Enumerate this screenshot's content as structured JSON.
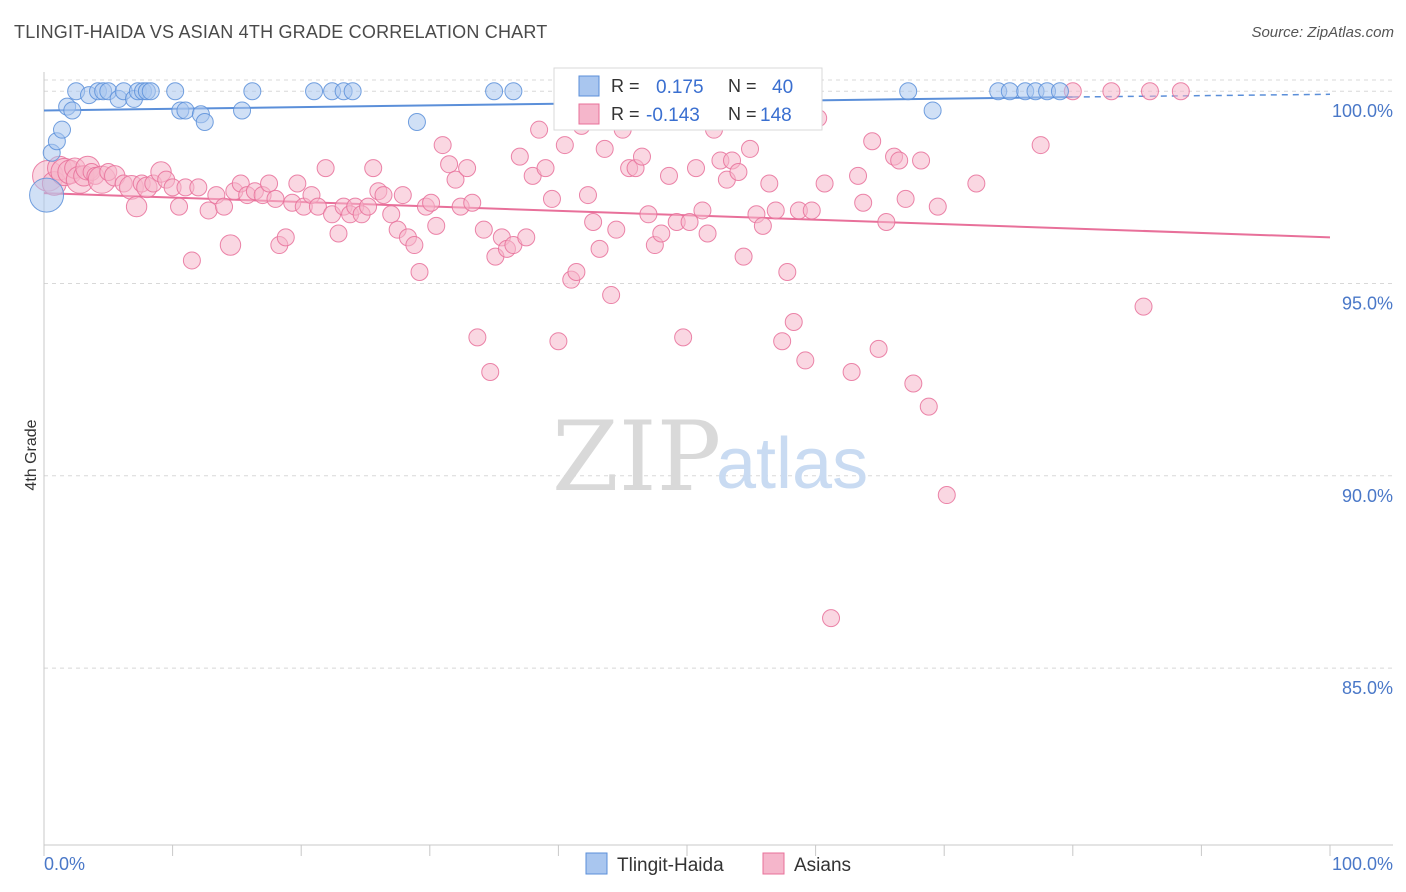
{
  "title": "TLINGIT-HAIDA VS ASIAN 4TH GRADE CORRELATION CHART",
  "source": "Source: ZipAtlas.com",
  "watermark": {
    "zip": "ZIP",
    "atlas": "atlas"
  },
  "colors": {
    "blue": "#5b8fd9",
    "blue_fill": "#a9c6ef",
    "pink": "#e8709a",
    "pink_fill": "#f5b6cb",
    "grid": "#d8d8d8",
    "axis_text": "#4a78c8"
  },
  "chart_data": {
    "type": "scatter",
    "title": "TLINGIT-HAIDA VS ASIAN 4TH GRADE CORRELATION CHART",
    "xlabel": "",
    "ylabel": "4th Grade",
    "xlim": [
      0,
      100
    ],
    "ylim": [
      80.4,
      100.5
    ],
    "x_tick_labels": [
      "0.0%",
      "100.0%"
    ],
    "y_ticks": [
      100,
      95,
      90,
      85
    ],
    "y_tick_labels": [
      "100.0%",
      "95.0%",
      "90.0%",
      "85.0%"
    ],
    "legend": {
      "position": "bottom",
      "entries": [
        "Tlingit-Haida",
        "Asians"
      ]
    },
    "stats": [
      {
        "label_r": "R =",
        "r": "0.175",
        "label_n": "N =",
        "n": "40"
      },
      {
        "label_r": "R =",
        "r": "-0.143",
        "label_n": "N =",
        "n": "148"
      }
    ],
    "series": [
      {
        "name": "Tlingit-Haida",
        "color": "#5b8fd9",
        "trend": {
          "x": [
            0,
            80
          ],
          "y": [
            99.5,
            99.85
          ],
          "dashed_to": [
            100,
            99.92
          ]
        },
        "points": [
          [
            0.2,
            97.3,
            2.0
          ],
          [
            0.6,
            98.4,
            1
          ],
          [
            1.0,
            98.7,
            1
          ],
          [
            1.4,
            99.0,
            1
          ],
          [
            1.8,
            99.6,
            1
          ],
          [
            2.2,
            99.5,
            1
          ],
          [
            2.5,
            100,
            1
          ],
          [
            3.5,
            99.9,
            1
          ],
          [
            4.2,
            100,
            1
          ],
          [
            4.6,
            100,
            1
          ],
          [
            5.0,
            100,
            1
          ],
          [
            5.8,
            99.8,
            1
          ],
          [
            6.2,
            100,
            1
          ],
          [
            7.0,
            99.8,
            1
          ],
          [
            7.3,
            100,
            1
          ],
          [
            7.7,
            100,
            1
          ],
          [
            8.0,
            100,
            1
          ],
          [
            8.3,
            100,
            1
          ],
          [
            10.2,
            100,
            1
          ],
          [
            10.6,
            99.5,
            1
          ],
          [
            11.0,
            99.5,
            1
          ],
          [
            12.2,
            99.4,
            1
          ],
          [
            12.5,
            99.2,
            1
          ],
          [
            15.4,
            99.5,
            1
          ],
          [
            16.2,
            100,
            1
          ],
          [
            21.0,
            100,
            1
          ],
          [
            22.4,
            100,
            1
          ],
          [
            23.3,
            100,
            1
          ],
          [
            24.0,
            100,
            1
          ],
          [
            29.0,
            99.2,
            1
          ],
          [
            35.0,
            100,
            1
          ],
          [
            36.5,
            100,
            1
          ],
          [
            67.2,
            100,
            1
          ],
          [
            69.1,
            99.5,
            1
          ],
          [
            74.2,
            100,
            1
          ],
          [
            75.1,
            100,
            1
          ],
          [
            76.3,
            100,
            1
          ],
          [
            77.1,
            100,
            1
          ],
          [
            78.0,
            100,
            1
          ],
          [
            79.0,
            100,
            1
          ]
        ]
      },
      {
        "name": "Asians",
        "color": "#e8709a",
        "trend": {
          "x": [
            0,
            100
          ],
          "y": [
            97.35,
            96.2
          ]
        },
        "points": [
          [
            0.3,
            97.8,
            1.8
          ],
          [
            0.8,
            97.6,
            1.4
          ],
          [
            1.2,
            98.0,
            1.4
          ],
          [
            1.6,
            97.9,
            1.6
          ],
          [
            2.0,
            97.9,
            1.4
          ],
          [
            2.4,
            98.0,
            1.2
          ],
          [
            2.8,
            97.7,
            1.6
          ],
          [
            3.1,
            97.8,
            1.2
          ],
          [
            3.4,
            98.0,
            1.4
          ],
          [
            3.7,
            97.9,
            1
          ],
          [
            4.0,
            97.8,
            1
          ],
          [
            4.5,
            97.7,
            1.6
          ],
          [
            5.0,
            97.9,
            1
          ],
          [
            5.5,
            97.8,
            1.2
          ],
          [
            6.2,
            97.6,
            1
          ],
          [
            6.8,
            97.5,
            1.4
          ],
          [
            7.2,
            97.0,
            1.2
          ],
          [
            7.6,
            97.6,
            1
          ],
          [
            8.0,
            97.5,
            1.2
          ],
          [
            8.5,
            97.6,
            1
          ],
          [
            9.1,
            97.9,
            1.2
          ],
          [
            9.5,
            97.7,
            1
          ],
          [
            10.0,
            97.5,
            1
          ],
          [
            10.5,
            97.0,
            1
          ],
          [
            11.0,
            97.5,
            1
          ],
          [
            11.5,
            95.6,
            1
          ],
          [
            12.0,
            97.5,
            1
          ],
          [
            12.8,
            96.9,
            1
          ],
          [
            13.4,
            97.3,
            1
          ],
          [
            14.0,
            97.0,
            1
          ],
          [
            14.5,
            96.0,
            1.2
          ],
          [
            14.8,
            97.4,
            1
          ],
          [
            15.3,
            97.6,
            1
          ],
          [
            15.8,
            97.3,
            1
          ],
          [
            16.4,
            97.4,
            1
          ],
          [
            17.0,
            97.3,
            1
          ],
          [
            17.5,
            97.6,
            1
          ],
          [
            18.0,
            97.2,
            1
          ],
          [
            18.3,
            96.0,
            1
          ],
          [
            18.8,
            96.2,
            1
          ],
          [
            19.3,
            97.1,
            1
          ],
          [
            19.7,
            97.6,
            1
          ],
          [
            20.2,
            97.0,
            1
          ],
          [
            20.8,
            97.3,
            1
          ],
          [
            21.3,
            97.0,
            1
          ],
          [
            21.9,
            98.0,
            1
          ],
          [
            22.4,
            96.8,
            1
          ],
          [
            22.9,
            96.3,
            1
          ],
          [
            23.3,
            97.0,
            1
          ],
          [
            23.8,
            96.8,
            1
          ],
          [
            24.2,
            97.0,
            1
          ],
          [
            24.7,
            96.8,
            1
          ],
          [
            25.2,
            97.0,
            1
          ],
          [
            25.6,
            98.0,
            1
          ],
          [
            26.0,
            97.4,
            1
          ],
          [
            26.4,
            97.3,
            1
          ],
          [
            27.0,
            96.8,
            1
          ],
          [
            27.5,
            96.4,
            1
          ],
          [
            27.9,
            97.3,
            1
          ],
          [
            28.3,
            96.2,
            1
          ],
          [
            28.8,
            96.0,
            1
          ],
          [
            29.2,
            95.3,
            1
          ],
          [
            29.7,
            97.0,
            1
          ],
          [
            30.1,
            97.1,
            1
          ],
          [
            30.5,
            96.5,
            1
          ],
          [
            31.0,
            98.6,
            1
          ],
          [
            31.5,
            98.1,
            1
          ],
          [
            32.0,
            97.7,
            1
          ],
          [
            32.4,
            97.0,
            1
          ],
          [
            32.9,
            98.0,
            1
          ],
          [
            33.3,
            97.1,
            1
          ],
          [
            33.7,
            93.6,
            1
          ],
          [
            34.2,
            96.4,
            1
          ],
          [
            34.7,
            92.7,
            1
          ],
          [
            35.1,
            95.7,
            1
          ],
          [
            35.6,
            96.2,
            1
          ],
          [
            36.0,
            95.9,
            1
          ],
          [
            36.5,
            96.0,
            1
          ],
          [
            37.0,
            98.3,
            1
          ],
          [
            37.5,
            96.2,
            1
          ],
          [
            38.0,
            97.8,
            1
          ],
          [
            38.5,
            99.0,
            1
          ],
          [
            39.0,
            98.0,
            1
          ],
          [
            39.5,
            97.2,
            1
          ],
          [
            40.0,
            93.5,
            1
          ],
          [
            40.5,
            98.6,
            1
          ],
          [
            41.0,
            95.1,
            1
          ],
          [
            41.4,
            95.3,
            1
          ],
          [
            41.8,
            99.1,
            1
          ],
          [
            42.3,
            97.3,
            1
          ],
          [
            42.7,
            96.6,
            1
          ],
          [
            43.2,
            95.9,
            1
          ],
          [
            43.6,
            98.5,
            1
          ],
          [
            44.1,
            94.7,
            1
          ],
          [
            44.5,
            96.4,
            1
          ],
          [
            45.0,
            99.0,
            1
          ],
          [
            45.5,
            98.0,
            1
          ],
          [
            46.0,
            98.0,
            1
          ],
          [
            46.5,
            98.3,
            1
          ],
          [
            47.0,
            96.8,
            1
          ],
          [
            47.5,
            96.0,
            1
          ],
          [
            48.0,
            96.3,
            1
          ],
          [
            48.6,
            97.8,
            1
          ],
          [
            49.2,
            96.6,
            1
          ],
          [
            49.7,
            93.6,
            1
          ],
          [
            50.2,
            96.6,
            1
          ],
          [
            50.7,
            98.0,
            1
          ],
          [
            51.2,
            96.9,
            1
          ],
          [
            51.6,
            96.3,
            1
          ],
          [
            52.1,
            99.0,
            1
          ],
          [
            52.6,
            98.2,
            1
          ],
          [
            53.1,
            97.7,
            1
          ],
          [
            53.5,
            98.2,
            1
          ],
          [
            54.0,
            97.9,
            1
          ],
          [
            54.4,
            95.7,
            1
          ],
          [
            54.9,
            98.5,
            1
          ],
          [
            55.4,
            96.8,
            1
          ],
          [
            55.9,
            96.5,
            1
          ],
          [
            56.4,
            97.6,
            1
          ],
          [
            56.9,
            96.9,
            1
          ],
          [
            57.4,
            93.5,
            1
          ],
          [
            57.8,
            95.3,
            1
          ],
          [
            58.3,
            94.0,
            1
          ],
          [
            58.7,
            96.9,
            1
          ],
          [
            59.2,
            93.0,
            1
          ],
          [
            59.7,
            96.9,
            1
          ],
          [
            60.2,
            99.3,
            1
          ],
          [
            60.7,
            97.6,
            1
          ],
          [
            61.2,
            86.3,
            1
          ],
          [
            62.8,
            92.7,
            1
          ],
          [
            63.3,
            97.8,
            1
          ],
          [
            63.7,
            97.1,
            1
          ],
          [
            64.4,
            98.7,
            1
          ],
          [
            64.9,
            93.3,
            1
          ],
          [
            65.5,
            96.6,
            1
          ],
          [
            66.1,
            98.3,
            1
          ],
          [
            66.5,
            98.2,
            1
          ],
          [
            67.0,
            97.2,
            1
          ],
          [
            67.6,
            92.4,
            1
          ],
          [
            68.2,
            98.2,
            1
          ],
          [
            68.8,
            91.8,
            1
          ],
          [
            69.5,
            97.0,
            1
          ],
          [
            70.2,
            89.5,
            1
          ],
          [
            72.5,
            97.6,
            1
          ],
          [
            77.5,
            98.6,
            1
          ],
          [
            85.5,
            94.4,
            1
          ],
          [
            80.0,
            100,
            1
          ],
          [
            83.0,
            100,
            1
          ],
          [
            86.0,
            100,
            1
          ],
          [
            88.4,
            100,
            1
          ]
        ]
      }
    ]
  }
}
